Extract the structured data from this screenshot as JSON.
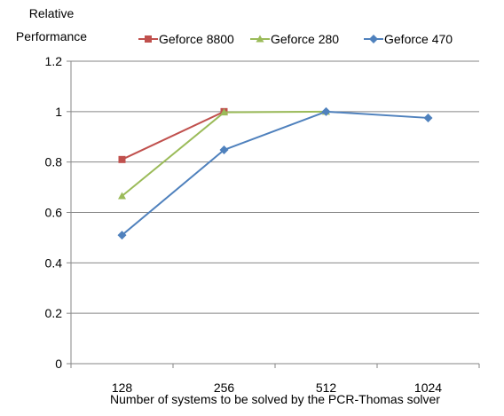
{
  "chart_data": {
    "type": "line",
    "ylabel_lines": [
      "Relative",
      "Performance"
    ],
    "xlabel": "Number of systems to be solved by the PCR-Thomas solver",
    "categories": [
      "128",
      "256",
      "512",
      "1024"
    ],
    "ylim": [
      0,
      1.2
    ],
    "yticks": [
      "0",
      "0.2",
      "0.4",
      "0.6",
      "0.8",
      "1",
      "1.2"
    ],
    "grid": true,
    "legend_position": "top",
    "series": [
      {
        "name": "Geforce 8800",
        "color": "#C0504D",
        "marker": "square",
        "values": [
          0.81,
          1.0,
          null,
          null
        ]
      },
      {
        "name": "Geforce 280",
        "color": "#9BBB59",
        "marker": "triangle",
        "values": [
          0.665,
          0.997,
          1.0,
          null
        ]
      },
      {
        "name": "Geforce 470",
        "color": "#4F81BD",
        "marker": "diamond",
        "values": [
          0.51,
          0.848,
          1.0,
          0.975
        ]
      }
    ]
  }
}
